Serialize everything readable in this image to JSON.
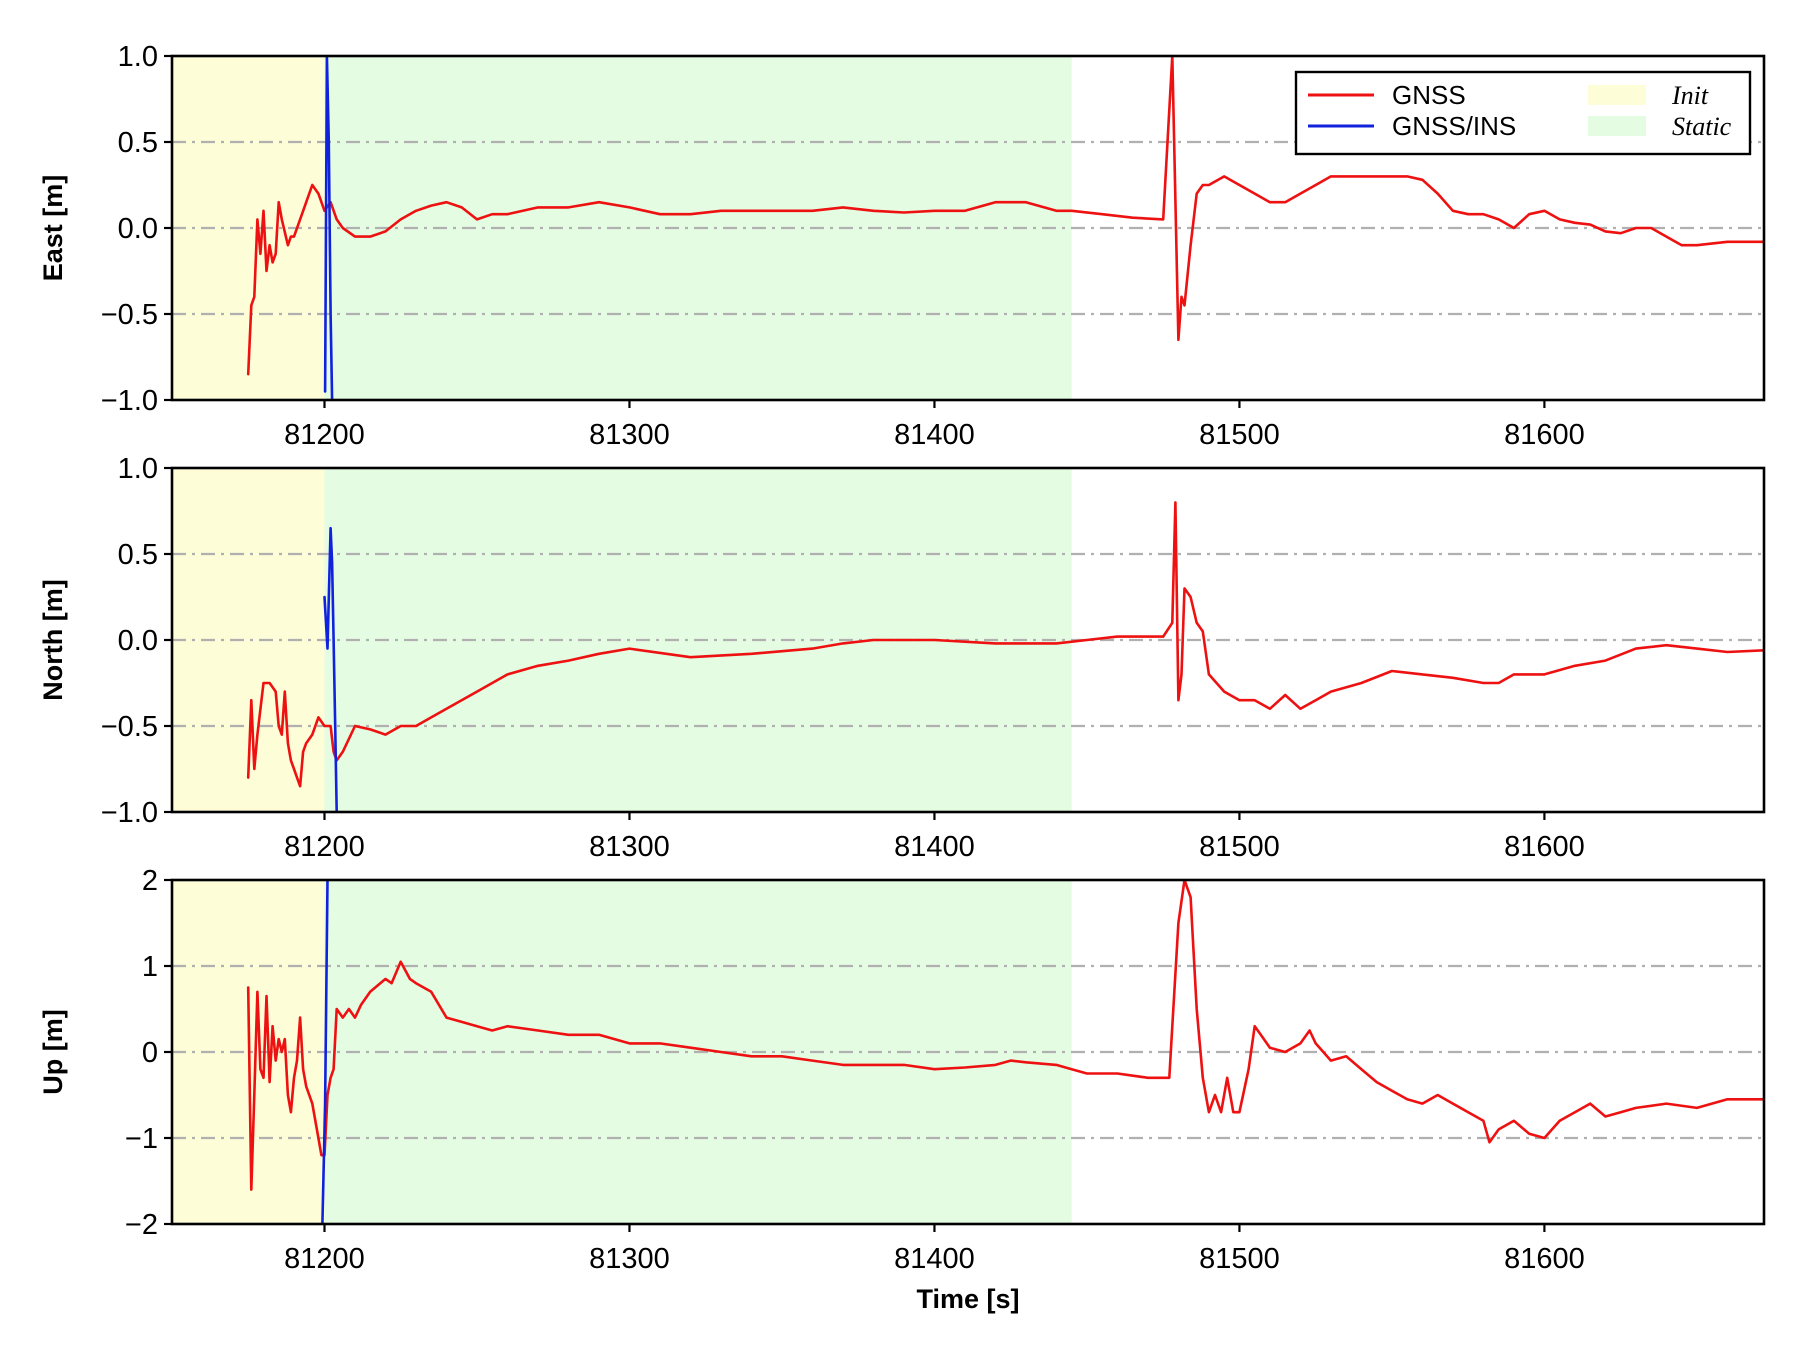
{
  "chart_data": {
    "type": "line",
    "xlabel": "Time [s]",
    "xlim": [
      81150,
      81672
    ],
    "xticks": [
      81200,
      81300,
      81400,
      81500,
      81600
    ],
    "grid": "horizontal dash-dot",
    "legend": {
      "placement": "top-right",
      "entries": [
        {
          "name": "GNSS",
          "kind": "line",
          "color": "#ee1111"
        },
        {
          "name": "GNSS/INS",
          "kind": "line",
          "color": "#1122dd"
        },
        {
          "name": "Init",
          "kind": "patch",
          "color": "#fdfdd8"
        },
        {
          "name": "Static",
          "kind": "patch",
          "color": "#e4fce2"
        }
      ]
    },
    "shaded_regions": [
      {
        "name": "Init",
        "x": [
          81150,
          81200
        ],
        "color": "#fdfdd8"
      },
      {
        "name": "Static",
        "x": [
          81200,
          81445
        ],
        "color": "#e4fce2"
      }
    ],
    "colors": {
      "gnss": "#ee1111",
      "ins": "#1122dd"
    },
    "panels": [
      {
        "ylabel": "East [m]",
        "ylim": [
          -1,
          1
        ],
        "yticks": [
          -1,
          -0.5,
          0,
          0.5,
          1
        ],
        "ytick_labels": [
          "−1.0",
          "−0.5",
          "0.0",
          "0.5",
          "1.0"
        ],
        "series": [
          {
            "name": "GNSS",
            "x": [
              81175,
              81176,
              81177,
              81178,
              81179,
              81180,
              81181,
              81182,
              81183,
              81184,
              81185,
              81186,
              81188,
              81189,
              81190,
              81192,
              81194,
              81196,
              81198,
              81200,
              81202,
              81204,
              81206,
              81210,
              81215,
              81220,
              81225,
              81230,
              81235,
              81240,
              81245,
              81250,
              81255,
              81260,
              81270,
              81280,
              81290,
              81300,
              81310,
              81320,
              81330,
              81340,
              81350,
              81360,
              81370,
              81380,
              81390,
              81400,
              81410,
              81420,
              81430,
              81440,
              81445,
              81455,
              81465,
              81475,
              81478,
              81480,
              81481,
              81482,
              81484,
              81486,
              81488,
              81490,
              81495,
              81500,
              81505,
              81510,
              81515,
              81520,
              81525,
              81530,
              81540,
              81550,
              81555,
              81560,
              81565,
              81570,
              81575,
              81580,
              81585,
              81590,
              81595,
              81600,
              81605,
              81610,
              81615,
              81620,
              81625,
              81630,
              81635,
              81640,
              81645,
              81650,
              81660,
              81672
            ],
            "y": [
              -0.85,
              -0.45,
              -0.4,
              0.05,
              -0.15,
              0.1,
              -0.25,
              -0.1,
              -0.2,
              -0.15,
              0.15,
              0.05,
              -0.1,
              -0.05,
              -0.05,
              0.05,
              0.15,
              0.25,
              0.2,
              0.1,
              0.15,
              0.05,
              0.0,
              -0.05,
              -0.05,
              -0.02,
              0.05,
              0.1,
              0.13,
              0.15,
              0.12,
              0.05,
              0.08,
              0.08,
              0.12,
              0.12,
              0.15,
              0.12,
              0.08,
              0.08,
              0.1,
              0.1,
              0.1,
              0.1,
              0.12,
              0.1,
              0.09,
              0.1,
              0.1,
              0.15,
              0.15,
              0.1,
              0.1,
              0.08,
              0.06,
              0.05,
              1.0,
              -0.65,
              -0.4,
              -0.45,
              -0.1,
              0.2,
              0.25,
              0.25,
              0.3,
              0.25,
              0.2,
              0.15,
              0.15,
              0.2,
              0.25,
              0.3,
              0.3,
              0.3,
              0.3,
              0.28,
              0.2,
              0.1,
              0.08,
              0.08,
              0.05,
              0.0,
              0.08,
              0.1,
              0.05,
              0.03,
              0.02,
              -0.02,
              -0.03,
              0.0,
              0.0,
              -0.05,
              -0.1,
              -0.1,
              -0.08,
              -0.08
            ]
          },
          {
            "name": "GNSS/INS",
            "x": [
              81200.2,
              81200.8,
              81201.4,
              81202.0,
              81202.5
            ],
            "y": [
              -0.95,
              1.0,
              0.5,
              -0.5,
              -1.0
            ]
          }
        ]
      },
      {
        "ylabel": "North [m]",
        "ylim": [
          -1,
          1
        ],
        "yticks": [
          -1,
          -0.5,
          0,
          0.5,
          1
        ],
        "ytick_labels": [
          "−1.0",
          "−0.5",
          "0.0",
          "0.5",
          "1.0"
        ],
        "series": [
          {
            "name": "GNSS",
            "x": [
              81175,
              81176,
              81177,
              81178,
              81180,
              81182,
              81184,
              81185,
              81186,
              81187,
              81188,
              81189,
              81190,
              81191,
              81192,
              81193,
              81194,
              81196,
              81198,
              81200,
              81202,
              81203,
              81204,
              81206,
              81210,
              81215,
              81220,
              81225,
              81230,
              81235,
              81240,
              81250,
              81260,
              81270,
              81280,
              81290,
              81300,
              81320,
              81340,
              81360,
              81370,
              81380,
              81400,
              81420,
              81440,
              81450,
              81460,
              81470,
              81475,
              81478,
              81479,
              81480,
              81481,
              81482,
              81484,
              81486,
              81488,
              81490,
              81495,
              81500,
              81505,
              81510,
              81515,
              81520,
              81525,
              81530,
              81540,
              81550,
              81560,
              81570,
              81580,
              81585,
              81590,
              81600,
              81610,
              81620,
              81630,
              81640,
              81650,
              81660,
              81672
            ],
            "y": [
              -0.8,
              -0.35,
              -0.75,
              -0.55,
              -0.25,
              -0.25,
              -0.3,
              -0.5,
              -0.55,
              -0.3,
              -0.6,
              -0.7,
              -0.75,
              -0.8,
              -0.85,
              -0.65,
              -0.6,
              -0.55,
              -0.45,
              -0.5,
              -0.5,
              -0.65,
              -0.7,
              -0.65,
              -0.5,
              -0.52,
              -0.55,
              -0.5,
              -0.5,
              -0.45,
              -0.4,
              -0.3,
              -0.2,
              -0.15,
              -0.12,
              -0.08,
              -0.05,
              -0.1,
              -0.08,
              -0.05,
              -0.02,
              0.0,
              0.0,
              -0.02,
              -0.02,
              0.0,
              0.02,
              0.02,
              0.02,
              0.1,
              0.8,
              -0.35,
              -0.2,
              0.3,
              0.25,
              0.1,
              0.05,
              -0.2,
              -0.3,
              -0.35,
              -0.35,
              -0.4,
              -0.32,
              -0.4,
              -0.35,
              -0.3,
              -0.25,
              -0.18,
              -0.2,
              -0.22,
              -0.25,
              -0.25,
              -0.2,
              -0.2,
              -0.15,
              -0.12,
              -0.05,
              -0.03,
              -0.05,
              -0.07,
              -0.06
            ]
          },
          {
            "name": "GNSS/INS",
            "x": [
              81200,
              81201,
              81202,
              81202.5,
              81203,
              81203.5,
              81204
            ],
            "y": [
              0.25,
              -0.05,
              0.65,
              0.45,
              0.0,
              -0.5,
              -1.0
            ]
          }
        ]
      },
      {
        "ylabel": "Up [m]",
        "ylim": [
          -2,
          2
        ],
        "yticks": [
          -2,
          -1,
          0,
          1,
          2
        ],
        "ytick_labels": [
          "−2",
          "−1",
          "0",
          "1",
          "2"
        ],
        "series": [
          {
            "name": "GNSS",
            "x": [
              81175,
              81176,
              81177,
              81178,
              81179,
              81180,
              81181,
              81182,
              81183,
              81184,
              81185,
              81186,
              81187,
              81188,
              81189,
              81190,
              81191,
              81192,
              81193,
              81194,
              81196,
              81198,
              81199,
              81200,
              81201,
              81202,
              81203,
              81204,
              81206,
              81208,
              81210,
              81212,
              81215,
              81220,
              81222,
              81225,
              81228,
              81230,
              81235,
              81240,
              81245,
              81250,
              81255,
              81260,
              81270,
              81280,
              81290,
              81300,
              81310,
              81320,
              81330,
              81340,
              81350,
              81360,
              81370,
              81380,
              81390,
              81400,
              81410,
              81420,
              81425,
              81430,
              81440,
              81445,
              81450,
              81460,
              81470,
              81475,
              81477,
              81478,
              81480,
              81482,
              81484,
              81486,
              81488,
              81490,
              81492,
              81494,
              81496,
              81498,
              81500,
              81503,
              81505,
              81507,
              81510,
              81515,
              81520,
              81523,
              81525,
              81530,
              81535,
              81540,
              81545,
              81550,
              81555,
              81560,
              81565,
              81570,
              81575,
              81580,
              81582,
              81585,
              81590,
              81595,
              81600,
              81605,
              81610,
              81615,
              81620,
              81625,
              81630,
              81640,
              81650,
              81660,
              81672
            ],
            "y": [
              0.75,
              -1.6,
              -0.5,
              0.7,
              -0.2,
              -0.3,
              0.65,
              -0.35,
              0.3,
              -0.1,
              0.15,
              0.0,
              0.15,
              -0.5,
              -0.7,
              -0.3,
              -0.1,
              0.4,
              -0.2,
              -0.4,
              -0.6,
              -1.0,
              -1.2,
              -1.2,
              -0.5,
              -0.3,
              -0.2,
              0.5,
              0.4,
              0.5,
              0.4,
              0.55,
              0.7,
              0.85,
              0.8,
              1.05,
              0.85,
              0.8,
              0.7,
              0.4,
              0.35,
              0.3,
              0.25,
              0.3,
              0.25,
              0.2,
              0.2,
              0.1,
              0.1,
              0.05,
              0.0,
              -0.05,
              -0.05,
              -0.1,
              -0.15,
              -0.15,
              -0.15,
              -0.2,
              -0.18,
              -0.15,
              -0.1,
              -0.12,
              -0.15,
              -0.2,
              -0.25,
              -0.25,
              -0.3,
              -0.3,
              -0.3,
              0.3,
              1.5,
              2.0,
              1.8,
              0.5,
              -0.3,
              -0.7,
              -0.5,
              -0.7,
              -0.3,
              -0.7,
              -0.7,
              -0.2,
              0.3,
              0.2,
              0.05,
              0.0,
              0.1,
              0.25,
              0.1,
              -0.1,
              -0.05,
              -0.2,
              -0.35,
              -0.45,
              -0.55,
              -0.6,
              -0.5,
              -0.6,
              -0.7,
              -0.8,
              -1.05,
              -0.9,
              -0.8,
              -0.95,
              -1.0,
              -0.8,
              -0.7,
              -0.6,
              -0.75,
              -0.7,
              -0.65,
              -0.6,
              -0.65,
              -0.55,
              -0.55
            ]
          },
          {
            "name": "GNSS/INS",
            "x": [
              81199.3,
              81200.2,
              81201.0
            ],
            "y": [
              -2.0,
              -0.6,
              2.0
            ]
          }
        ]
      }
    ]
  }
}
